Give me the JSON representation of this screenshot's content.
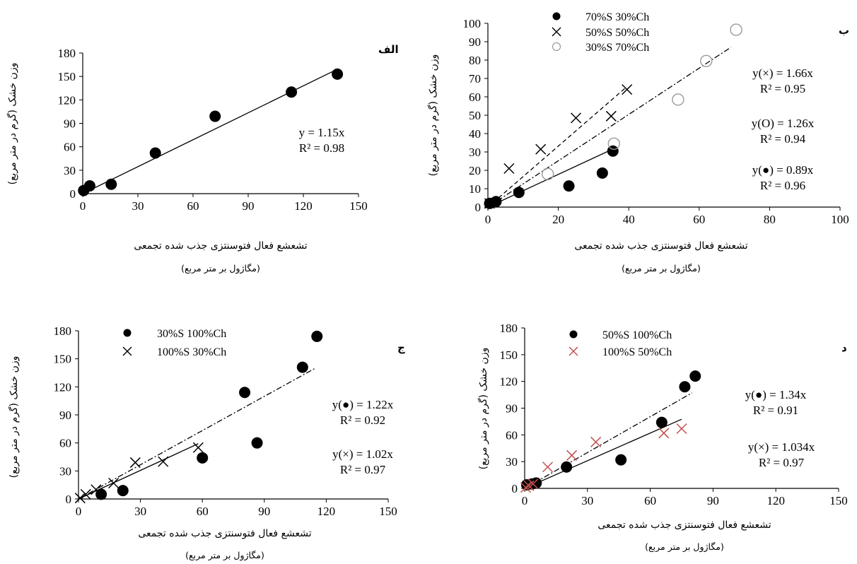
{
  "chart_data": [
    {
      "type": "scatter",
      "panel_label": "الف",
      "xlabel": "تشعشع فعال فتوسنتزی جذب شده  تجمعی",
      "xunit": "(مگاژول بر متر مربع)",
      "ylabel": "وزن خشک (گرم در متر مربع)",
      "xlim": [
        0,
        150
      ],
      "ylim": [
        0,
        180
      ],
      "xticks": [
        "0",
        "30",
        "60",
        "90",
        "120",
        "150"
      ],
      "yticks": [
        "0",
        "30",
        "60",
        "90",
        "120",
        "150",
        "180"
      ],
      "legend": "none",
      "series": [
        {
          "marker": "filled-circle",
          "color": "#000000",
          "x": [
            0.5,
            3.8,
            15.5,
            39.5,
            72,
            113.5,
            138.5
          ],
          "y": [
            4,
            10,
            12,
            52,
            99,
            130,
            153
          ],
          "fit": {
            "slope": 1.15,
            "line_style": "solid",
            "x_end": 138
          }
        }
      ],
      "equations": [
        {
          "eq": "y = 1.15x",
          "r2": "R² = 0.98"
        }
      ]
    },
    {
      "type": "scatter",
      "panel_label": "ب",
      "xlabel": "تشعشع فعال فتوسنتزی جذب شده  تجمعی",
      "xunit": "(مگاژول بر متر مربع)",
      "ylabel": "وزن خشک (گرم در متر مربع)",
      "xlim": [
        0,
        100
      ],
      "ylim": [
        0,
        100
      ],
      "xticks": [
        "0",
        "20",
        "40",
        "60",
        "80",
        "100"
      ],
      "yticks": [
        "0",
        "10",
        "20",
        "30",
        "40",
        "50",
        "60",
        "70",
        "80",
        "90",
        "100"
      ],
      "legend": "top-left",
      "series": [
        {
          "name": "70%S 30%Ch",
          "marker": "filled-circle",
          "color": "#000000",
          "x": [
            0.5,
            2.3,
            8.8,
            23,
            32.5,
            35.5
          ],
          "y": [
            2,
            3,
            8,
            11.5,
            18.5,
            30.5
          ],
          "fit": {
            "slope": 0.89,
            "line_style": "solid",
            "x_end": 35
          }
        },
        {
          "name": "50%S 50%Ch",
          "marker": "x",
          "color": "#000000",
          "x": [
            0.5,
            6,
            15,
            25,
            35,
            39.5
          ],
          "y": [
            2,
            21,
            31.5,
            48.5,
            49.5,
            64
          ],
          "fit": {
            "slope": 1.66,
            "line_style": "dashed",
            "x_end": 39
          }
        },
        {
          "name": "30%S 70%Ch",
          "marker": "open-circle",
          "color": "#9a9a9a",
          "x": [
            17,
            35.8,
            54,
            62,
            70.5
          ],
          "y": [
            18,
            34.5,
            58.5,
            79.5,
            96.5
          ],
          "fit": {
            "slope": 1.26,
            "line_style": "dashdot",
            "x_end": 69
          }
        }
      ],
      "equations": [
        {
          "eq": "y(×) = 1.66x",
          "r2": "R² = 0.95"
        },
        {
          "eq": "y(O) = 1.26x",
          "r2": "R² = 0.94"
        },
        {
          "eq": "y(●) = 0.89x",
          "r2": "R² = 0.96"
        }
      ]
    },
    {
      "type": "scatter",
      "panel_label": "ج",
      "xlabel": "تشعشع فعال فتوسنتزی جذب شده  تجمعی",
      "xunit": "(مگاژول بر متر مربع)",
      "ylabel": "وزن خشک (گرم در متر مربع)",
      "xlim": [
        0,
        150
      ],
      "ylim": [
        0,
        180
      ],
      "xticks": [
        "0",
        "30",
        "60",
        "90",
        "120",
        "150"
      ],
      "yticks": [
        "0",
        "30",
        "60",
        "90",
        "120",
        "150",
        "180"
      ],
      "legend": "top-left",
      "series": [
        {
          "name": "30%S 100%Ch",
          "marker": "filled-circle",
          "color": "#000000",
          "x": [
            11,
            21.5,
            60,
            80.5,
            86.5,
            108.5,
            115.5
          ],
          "y": [
            5,
            9,
            44,
            114,
            60,
            141,
            174
          ],
          "fit": {
            "slope": 1.22,
            "line_style": "dashdot",
            "x_end": 115
          }
        },
        {
          "name": "100%S 30%Ch",
          "marker": "x",
          "color": "#000000",
          "x": [
            0.8,
            3.5,
            8.5,
            17,
            27.5,
            41,
            58
          ],
          "y": [
            1,
            5,
            10,
            17,
            39,
            40,
            55
          ],
          "fit": {
            "slope": 1.02,
            "line_style": "solid",
            "x_end": 58
          }
        }
      ],
      "equations": [
        {
          "eq": "y(●) = 1.22x",
          "r2": "R² = 0.92"
        },
        {
          "eq": "y(×) = 1.02x",
          "r2": "R² = 0.97"
        }
      ]
    },
    {
      "type": "scatter",
      "panel_label": "د",
      "xlabel": "تشعشع فعال فتوسنتزی جذب شده  تجمعی",
      "xunit": "(مگاژول بر متر مربع)",
      "ylabel": "وزن خشک (گرم در متر مربع)",
      "xlim": [
        0,
        150
      ],
      "ylim": [
        0,
        180
      ],
      "xticks": [
        "0",
        "30",
        "60",
        "90",
        "120",
        "150"
      ],
      "yticks": [
        "0",
        "30",
        "60",
        "90",
        "120",
        "150",
        "180"
      ],
      "legend": "top-left",
      "series": [
        {
          "name": "50%S 100%Ch",
          "marker": "filled-circle",
          "color": "#000000",
          "x": [
            1,
            3.5,
            5.5,
            20,
            46,
            65.5,
            76.5,
            81.5
          ],
          "y": [
            4,
            5,
            6,
            24,
            32,
            74,
            114,
            126
          ],
          "fit": {
            "slope": 1.34,
            "line_style": "dashdot",
            "x_end": 80
          }
        },
        {
          "name": "100%S 50%Ch",
          "marker": "x",
          "color": "#c0504d",
          "x": [
            0.5,
            2,
            4,
            11,
            22.5,
            34,
            66.5,
            75
          ],
          "y": [
            1,
            3,
            5,
            24,
            37,
            52,
            62,
            67
          ],
          "fit": {
            "slope": 1.034,
            "line_style": "solid",
            "x_end": 75
          }
        }
      ],
      "equations": [
        {
          "eq": "y(●) = 1.34x",
          "r2": "R² = 0.91"
        },
        {
          "eq": "y(×) = 1.034x",
          "r2": "R² = 0.97"
        }
      ]
    }
  ]
}
